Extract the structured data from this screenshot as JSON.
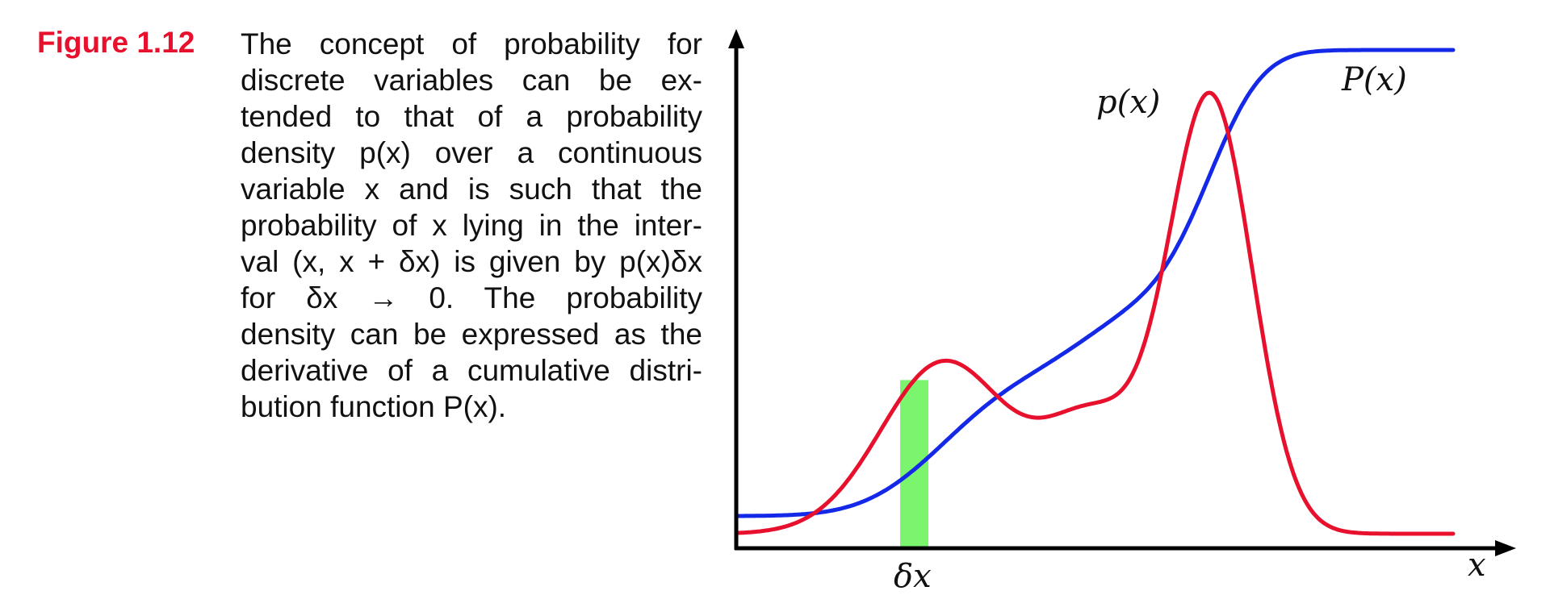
{
  "figure": {
    "label": "Figure 1.12",
    "label_color": "#e8112d",
    "caption_lines": [
      "The concept of probability for",
      "discrete variables can be ex-",
      "tended to that of a probability",
      "density p(x) over a continuous",
      "variable x and is such that the",
      "probability of x lying in the inter-",
      "val (x, x + δx) is given by p(x)δx",
      "for δx → 0. The probability",
      "density can be expressed as the",
      "derivative of a cumulative distri-",
      "bution function P(x)."
    ]
  },
  "chart_data": {
    "type": "line",
    "title": "",
    "xlabel": "x",
    "ylabel": "",
    "axes_arrows": true,
    "grid": false,
    "series": [
      {
        "name": "p(x)",
        "color": "#e8112d"
      },
      {
        "name": "P(x)",
        "color": "#1428e8"
      }
    ],
    "annotations": [
      {
        "text": "δx",
        "shading_color": "#7cf56e"
      }
    ]
  }
}
